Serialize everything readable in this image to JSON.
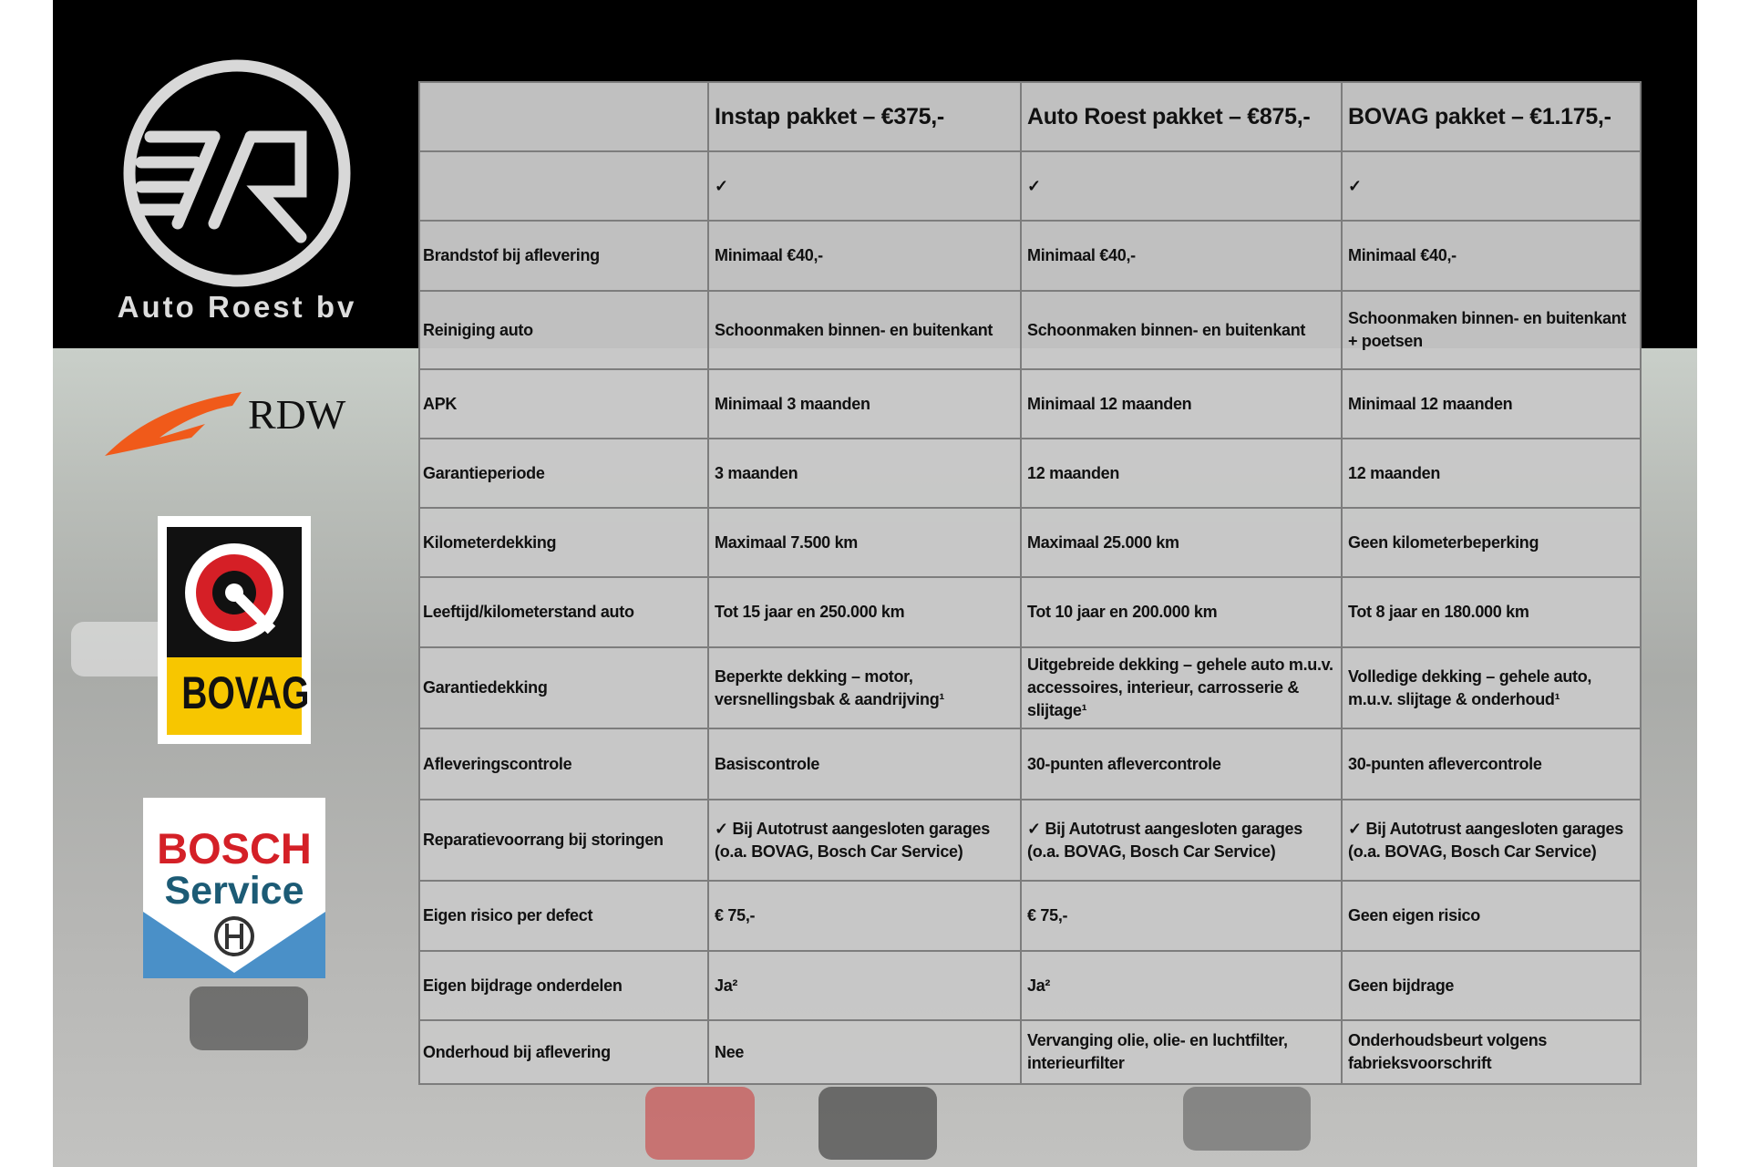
{
  "brand": {
    "name": "Auto Roest bv",
    "logo_letters": "7R"
  },
  "partner_logos": {
    "rdw": "RDW",
    "bovag": "BOVAG",
    "bosch_line1": "BOSCH",
    "bosch_line2": "Service"
  },
  "table": {
    "columns": [
      "",
      "Instap pakket – €375,-",
      "Auto Roest pakket – €875,-",
      "BOVAG pakket – €1.175,-"
    ],
    "rows": [
      [
        "",
        "✓",
        "✓",
        "✓"
      ],
      [
        "Brandstof bij aflevering",
        "Minimaal €40,-",
        "Minimaal €40,-",
        "Minimaal €40,-"
      ],
      [
        "Reiniging auto",
        "Schoonmaken binnen- en buitenkant",
        "Schoonmaken binnen- en buitenkant",
        "Schoonmaken binnen- en buitenkant + poetsen"
      ],
      [
        "APK",
        "Minimaal 3 maanden",
        "Minimaal 12 maanden",
        "Minimaal 12 maanden"
      ],
      [
        "Garantieperiode",
        "3 maanden",
        "12 maanden",
        "12 maanden"
      ],
      [
        "Kilometerdekking",
        "Maximaal 7.500 km",
        "Maximaal 25.000 km",
        "Geen kilometerbeperking"
      ],
      [
        "Leeftijd/kilometerstand auto",
        "Tot 15 jaar en 250.000 km",
        "Tot 10 jaar en 200.000 km",
        "Tot 8 jaar en 180.000 km"
      ],
      [
        "Garantiedekking",
        "Beperkte dekking – motor, versnellingsbak & aandrijving¹",
        "Uitgebreide dekking – gehele auto m.u.v. accessoires, interieur, carrosserie & slijtage¹",
        "Volledige dekking – gehele auto, m.u.v. slijtage & onderhoud¹"
      ],
      [
        "Afleveringscontrole",
        "Basiscontrole",
        "30-punten aflevercontrole",
        "30-punten aflevercontrole"
      ],
      [
        "Reparatievoorrang bij storingen",
        "✓ Bij Autotrust aangesloten garages (o.a. BOVAG, Bosch Car Service)",
        "✓ Bij Autotrust aangesloten garages (o.a. BOVAG, Bosch Car Service)",
        "✓ Bij Autotrust aangesloten garages (o.a. BOVAG, Bosch Car Service)"
      ],
      [
        "Eigen risico per defect",
        "€ 75,-",
        "€ 75,-",
        "Geen eigen risico"
      ],
      [
        "Eigen bijdrage onderdelen",
        "Ja²",
        "Ja²",
        "Geen bijdrage"
      ],
      [
        "Onderhoud bij aflevering",
        "Nee",
        "Vervanging olie, olie- en luchtfilter, interieurfilter",
        "Onderhoudsbeurt volgens fabrieksvoorschrift"
      ]
    ]
  },
  "colors": {
    "background_band": "#000000",
    "table_bg": "#c8c8c8",
    "bovag_yellow": "#f7c600",
    "bosch_red": "#d42027",
    "rdw_orange": "#f05a1a"
  }
}
